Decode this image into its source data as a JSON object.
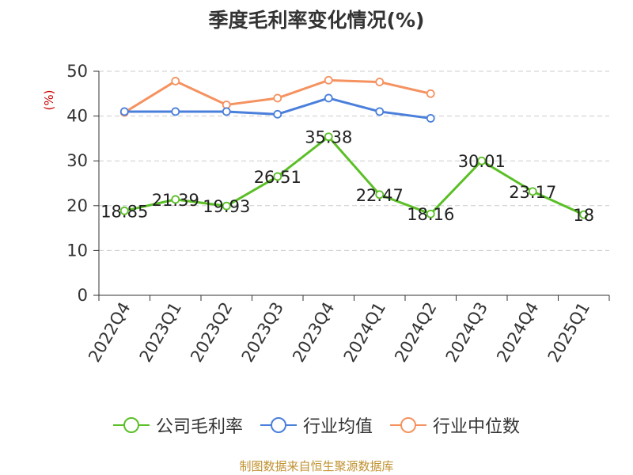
{
  "chart_data": {
    "type": "line",
    "title": "季度毛利率变化情况(%)",
    "ylabel": "(%)",
    "xlabel": "",
    "categories": [
      "2022Q4",
      "2023Q1",
      "2023Q2",
      "2023Q3",
      "2023Q4",
      "2024Q1",
      "2024Q2",
      "2024Q3",
      "2024Q4",
      "2025Q1"
    ],
    "ylim": [
      0,
      50
    ],
    "yticks": [
      0,
      10,
      20,
      30,
      40,
      50
    ],
    "grid": true,
    "legend_position": "bottom",
    "series": [
      {
        "name": "公司毛利率",
        "color": "#5bbf27",
        "values": [
          18.85,
          21.39,
          19.93,
          26.51,
          35.38,
          22.47,
          18.16,
          30.01,
          23.17,
          18
        ],
        "labels": [
          "18.85",
          "21.39",
          "19.93",
          "26.51",
          "35.38",
          "22.47",
          "18.16",
          "30.01",
          "23.17",
          "18"
        ]
      },
      {
        "name": "行业均值",
        "color": "#4a7fdb",
        "values": [
          41.0,
          41.0,
          41.0,
          40.4,
          44.0,
          41.0,
          39.5,
          null,
          null,
          null
        ]
      },
      {
        "name": "行业中位数",
        "color": "#f59260",
        "values": [
          40.8,
          47.8,
          42.5,
          44.0,
          48.0,
          47.6,
          45.0,
          null,
          null,
          null
        ]
      }
    ]
  },
  "source": "制图数据来自恒生聚源数据库",
  "colors": {
    "grid": "#cccccc",
    "axis": "#333333",
    "ylabel": "#cc0000",
    "source": "#c0912f"
  }
}
